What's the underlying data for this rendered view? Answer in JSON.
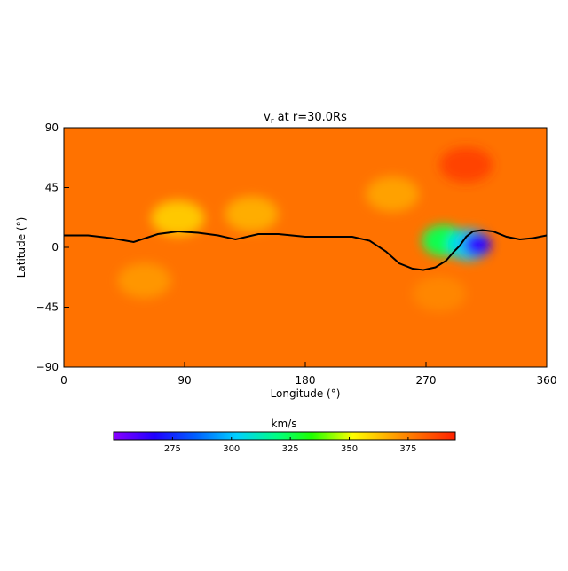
{
  "chart_data": {
    "type": "heatmap",
    "title": "v",
    "title_subscript": "r",
    "title_suffix": " at r=30.0Rs",
    "xlabel": "Longitude (°)",
    "ylabel": "Latitude (°)",
    "xlim": [
      0,
      360
    ],
    "ylim": [
      -90,
      90
    ],
    "xticks": [
      0,
      90,
      180,
      270,
      360
    ],
    "yticks": [
      -90,
      -45,
      0,
      45,
      90
    ],
    "colorbar": {
      "label": "km/s",
      "range": [
        250,
        395
      ],
      "ticks": [
        275,
        300,
        325,
        350,
        375
      ]
    },
    "background_value": 378,
    "features": [
      {
        "lon": 85,
        "lat": 22,
        "value": 355
      },
      {
        "lon": 140,
        "lat": 25,
        "value": 362
      },
      {
        "lon": 60,
        "lat": -25,
        "value": 368
      },
      {
        "lon": 245,
        "lat": 40,
        "value": 365
      },
      {
        "lon": 283,
        "lat": 5,
        "value": 325
      },
      {
        "lon": 302,
        "lat": 2,
        "value": 305
      },
      {
        "lon": 308,
        "lat": 2,
        "value": 265
      },
      {
        "lon": 280,
        "lat": -35,
        "value": 372
      },
      {
        "lon": 300,
        "lat": 62,
        "value": 392
      }
    ],
    "neutral_line": {
      "lon": [
        0,
        18,
        35,
        52,
        70,
        85,
        100,
        115,
        128,
        145,
        160,
        180,
        200,
        215,
        228,
        240,
        250,
        260,
        268,
        277,
        285,
        291,
        295,
        300,
        305,
        312,
        320,
        330,
        340,
        350,
        360
      ],
      "lat": [
        9,
        9,
        7,
        4,
        10,
        12,
        11,
        9,
        6,
        10,
        10,
        8,
        8,
        8,
        5,
        -3,
        -12,
        -16,
        -17,
        -15,
        -10,
        -3,
        1,
        8,
        12,
        13,
        12,
        8,
        6,
        7,
        9
      ]
    },
    "grid": false
  }
}
